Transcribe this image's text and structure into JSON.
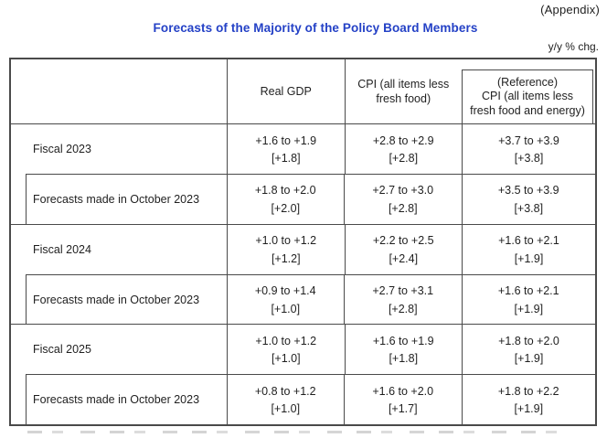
{
  "page": {
    "appendix": "(Appendix)",
    "title": "Forecasts of the Majority of the Policy Board Members",
    "unit": "y/y % chg.",
    "accent_color": "#2441c6",
    "border_color": "#4a4a4a"
  },
  "table": {
    "header": {
      "corner": "",
      "real_gdp": "Real GDP",
      "cpi": "CPI (all items less\nfresh food)",
      "reference": "(Reference)\nCPI (all items less\nfresh food and energy)"
    },
    "groups": [
      {
        "fiscal": {
          "label": "Fiscal 2023",
          "gdp_range": "+1.6 to +1.9",
          "gdp_median": "[+1.8]",
          "cpi_range": "+2.8 to +2.9",
          "cpi_median": "[+2.8]",
          "ref_range": "+3.7 to +3.9",
          "ref_median": "[+3.8]"
        },
        "october": {
          "label": "Forecasts made in October 2023",
          "gdp_range": "+1.8 to +2.0",
          "gdp_median": "[+2.0]",
          "cpi_range": "+2.7 to +3.0",
          "cpi_median": "[+2.8]",
          "ref_range": "+3.5 to +3.9",
          "ref_median": "[+3.8]"
        }
      },
      {
        "fiscal": {
          "label": "Fiscal 2024",
          "gdp_range": "+1.0 to +1.2",
          "gdp_median": "[+1.2]",
          "cpi_range": "+2.2 to +2.5",
          "cpi_median": "[+2.4]",
          "ref_range": "+1.6 to +2.1",
          "ref_median": "[+1.9]"
        },
        "october": {
          "label": "Forecasts made in October 2023",
          "gdp_range": "+0.9 to +1.4",
          "gdp_median": "[+1.0]",
          "cpi_range": "+2.7 to +3.1",
          "cpi_median": "[+2.8]",
          "ref_range": "+1.6 to +2.1",
          "ref_median": "[+1.9]"
        }
      },
      {
        "fiscal": {
          "label": "Fiscal 2025",
          "gdp_range": "+1.0 to +1.2",
          "gdp_median": "[+1.0]",
          "cpi_range": "+1.6 to +1.9",
          "cpi_median": "[+1.8]",
          "ref_range": "+1.8 to +2.0",
          "ref_median": "[+1.9]"
        },
        "october": {
          "label": "Forecasts made in October 2023",
          "gdp_range": "+0.8 to +1.2",
          "gdp_median": "[+1.0]",
          "cpi_range": "+1.6 to +2.0",
          "cpi_median": "[+1.7]",
          "ref_range": "+1.8 to +2.2",
          "ref_median": "[+1.9]"
        }
      }
    ]
  }
}
